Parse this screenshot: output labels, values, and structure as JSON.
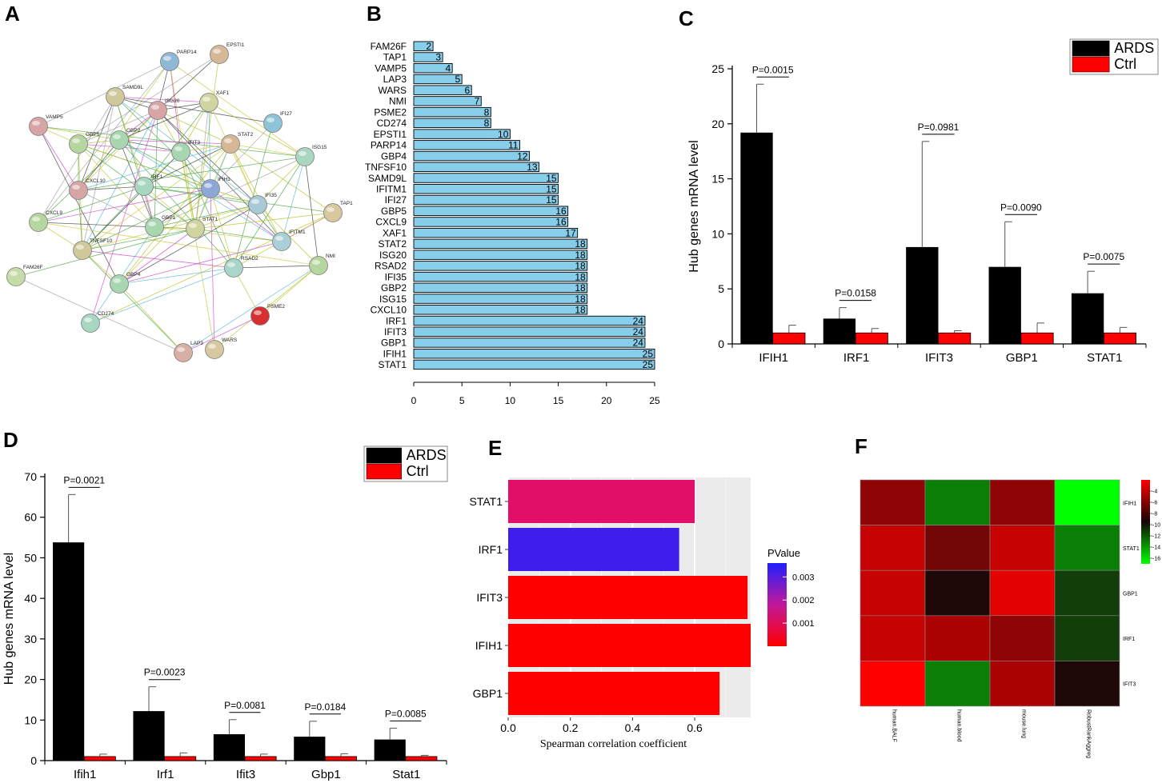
{
  "panel_labels": {
    "a": "A",
    "b": "B",
    "c": "C",
    "d": "D",
    "e": "E",
    "f": "F"
  },
  "colors": {
    "black": "#000000",
    "red": "#ff0000",
    "barB": "#87ceeb",
    "grid": "#ebebeb",
    "blue": "#2020ff",
    "magenta": "#d8168c"
  },
  "network": {
    "nodes": [
      {
        "name": "PARP14",
        "color": "#8fb7d6"
      },
      {
        "name": "EPSTI1",
        "color": "#d7b896"
      },
      {
        "name": "SAMD9L",
        "color": "#cfc89a"
      },
      {
        "name": "ISG20",
        "color": "#d7a5a5"
      },
      {
        "name": "XAF1",
        "color": "#cfd4a0"
      },
      {
        "name": "IFI27",
        "color": "#8fc3d6"
      },
      {
        "name": "VAMP5",
        "color": "#d7a5a5"
      },
      {
        "name": "GBP5",
        "color": "#b6d6a0"
      },
      {
        "name": "GBP2",
        "color": "#a8d6b0"
      },
      {
        "name": "IFIT3",
        "color": "#a8d6b0"
      },
      {
        "name": "STAT2",
        "color": "#d7b896"
      },
      {
        "name": "ISG15",
        "color": "#a8d6c0"
      },
      {
        "name": "IRF1",
        "color": "#a8d6c0"
      },
      {
        "name": "IFIH1",
        "color": "#8fa7d6"
      },
      {
        "name": "CXCL10",
        "color": "#d7a5a5"
      },
      {
        "name": "IFI35",
        "color": "#a8c9d6"
      },
      {
        "name": "TAP1",
        "color": "#d7c8a0"
      },
      {
        "name": "CXCL9",
        "color": "#b6d6a0"
      },
      {
        "name": "GBP1",
        "color": "#a8d6b0"
      },
      {
        "name": "STAT1",
        "color": "#cfd4a0"
      },
      {
        "name": "IFITM1",
        "color": "#a8d0d6"
      },
      {
        "name": "TNFSF10",
        "color": "#cfc89a"
      },
      {
        "name": "NMI",
        "color": "#b6d6a0"
      },
      {
        "name": "RSAD2",
        "color": "#a8d6c8"
      },
      {
        "name": "FAM26F",
        "color": "#c6dca8"
      },
      {
        "name": "GBP4",
        "color": "#a8d6b0"
      },
      {
        "name": "PSME2",
        "color": "#d63030"
      },
      {
        "name": "CD274",
        "color": "#a8d6c0"
      },
      {
        "name": "LAP3",
        "color": "#d7b0a5"
      },
      {
        "name": "WARS",
        "color": "#d7c8a0"
      }
    ]
  },
  "chart_data": [
    {
      "id": "B",
      "type": "bar",
      "orientation": "horizontal",
      "categories": [
        "FAM26F",
        "TAP1",
        "VAMP5",
        "LAP3",
        "WARS",
        "NMI",
        "PSME2",
        "CD274",
        "EPSTI1",
        "PARP14",
        "GBP4",
        "TNFSF10",
        "SAMD9L",
        "IFITM1",
        "IFI27",
        "GBP5",
        "CXCL9",
        "XAF1",
        "STAT2",
        "ISG20",
        "RSAD2",
        "IFI35",
        "GBP2",
        "ISG15",
        "CXCL10",
        "IRF1",
        "IFIT3",
        "GBP1",
        "IFIH1",
        "STAT1"
      ],
      "values": [
        2,
        3,
        4,
        5,
        6,
        7,
        8,
        8,
        10,
        11,
        12,
        13,
        15,
        15,
        15,
        16,
        16,
        17,
        18,
        18,
        18,
        18,
        18,
        18,
        18,
        24,
        24,
        24,
        25,
        25
      ],
      "data_labels": [
        "2",
        "3",
        "4",
        "5",
        "6",
        "7",
        "8",
        "8",
        "10",
        "11",
        "12",
        "13",
        "15",
        "15",
        "15",
        "16",
        "16",
        "17",
        "18",
        "18",
        "18",
        "18",
        "18",
        "18",
        "18",
        "24",
        "24",
        "24",
        "25",
        "25"
      ],
      "xlim": [
        0,
        25
      ],
      "xticks": [
        "0",
        "5",
        "10",
        "15",
        "20",
        "25"
      ]
    },
    {
      "id": "C",
      "type": "bar",
      "categories": [
        "IFIH1",
        "IRF1",
        "IFIT3",
        "GBP1",
        "STAT1"
      ],
      "series": [
        {
          "name": "ARDS",
          "values": [
            19.2,
            2.3,
            8.8,
            7.0,
            4.6
          ],
          "err": [
            4.4,
            1.0,
            9.6,
            4.1,
            2.0
          ]
        },
        {
          "name": "Ctrl",
          "values": [
            1.0,
            1.0,
            1.0,
            1.0,
            1.0
          ],
          "err": [
            0.7,
            0.4,
            0.2,
            0.9,
            0.5
          ]
        }
      ],
      "pvalues": [
        "P=0.0015",
        "P=0.0158",
        "P=0.0981",
        "P=0.0090",
        "P=0.0075"
      ],
      "ylabel": "Hub genes mRNA level",
      "ylim": [
        0,
        25
      ],
      "yticks": [
        "0",
        "5",
        "10",
        "15",
        "20",
        "25"
      ],
      "legend": [
        "ARDS",
        "Ctrl"
      ]
    },
    {
      "id": "D",
      "type": "bar",
      "categories": [
        "Ifih1",
        "Irf1",
        "Ifit3",
        "Gbp1",
        "Stat1"
      ],
      "series": [
        {
          "name": "ARDS",
          "values": [
            53.8,
            12.2,
            6.5,
            5.9,
            5.2
          ],
          "err": [
            11.8,
            6.0,
            3.6,
            3.8,
            2.8
          ]
        },
        {
          "name": "Ctrl",
          "values": [
            1.0,
            1.0,
            1.0,
            1.0,
            1.0
          ],
          "err": [
            0.6,
            0.9,
            0.6,
            0.7,
            0.3
          ]
        }
      ],
      "pvalues": [
        "P=0.0021",
        "P=0.0023",
        "P=0.0081",
        "P=0.0184",
        "P=0.0085"
      ],
      "ylabel": "Hub genes mRNA level",
      "ylim": [
        0,
        70
      ],
      "yticks": [
        "0",
        "10",
        "20",
        "30",
        "40",
        "50",
        "60",
        "70"
      ],
      "legend": [
        "ARDS",
        "Ctrl"
      ]
    },
    {
      "id": "E",
      "type": "bar",
      "orientation": "horizontal",
      "categories": [
        "STAT1",
        "IRF1",
        "IFIT3",
        "IFIH1",
        "GBP1"
      ],
      "values": [
        0.6,
        0.55,
        0.77,
        0.78,
        0.68
      ],
      "pvalue": [
        0.0014,
        0.0033,
        0.0001,
        0.0001,
        0.0001
      ],
      "xlabel": "Spearman correlation coefficient",
      "xlim": [
        0,
        0.78
      ],
      "xticks": [
        "0.0",
        "0.2",
        "0.4",
        "0.6"
      ],
      "legend_title": "PValue",
      "legend_ticks": [
        "0.003",
        "0.002",
        "0.001"
      ]
    },
    {
      "id": "F",
      "type": "heatmap",
      "rows": [
        "IFIH1",
        "STAT1",
        "GBP1",
        "IRF1",
        "IFIT3"
      ],
      "cols": [
        "human.BALF",
        "human.blood",
        "mouse.lung",
        "RobustRankAggreg"
      ],
      "values": [
        [
          -6,
          -13,
          -6,
          -17
        ],
        [
          -4,
          -7,
          -4,
          -13
        ],
        [
          -4,
          -10,
          -3,
          -11
        ],
        [
          -4,
          -5,
          -6,
          -11
        ],
        [
          -2,
          -13,
          -5,
          -10
        ]
      ],
      "colorbar_ticks": [
        "-4",
        "-6",
        "-8",
        "-10",
        "-12",
        "-14",
        "-16"
      ],
      "clim": [
        -17,
        -2
      ]
    }
  ]
}
